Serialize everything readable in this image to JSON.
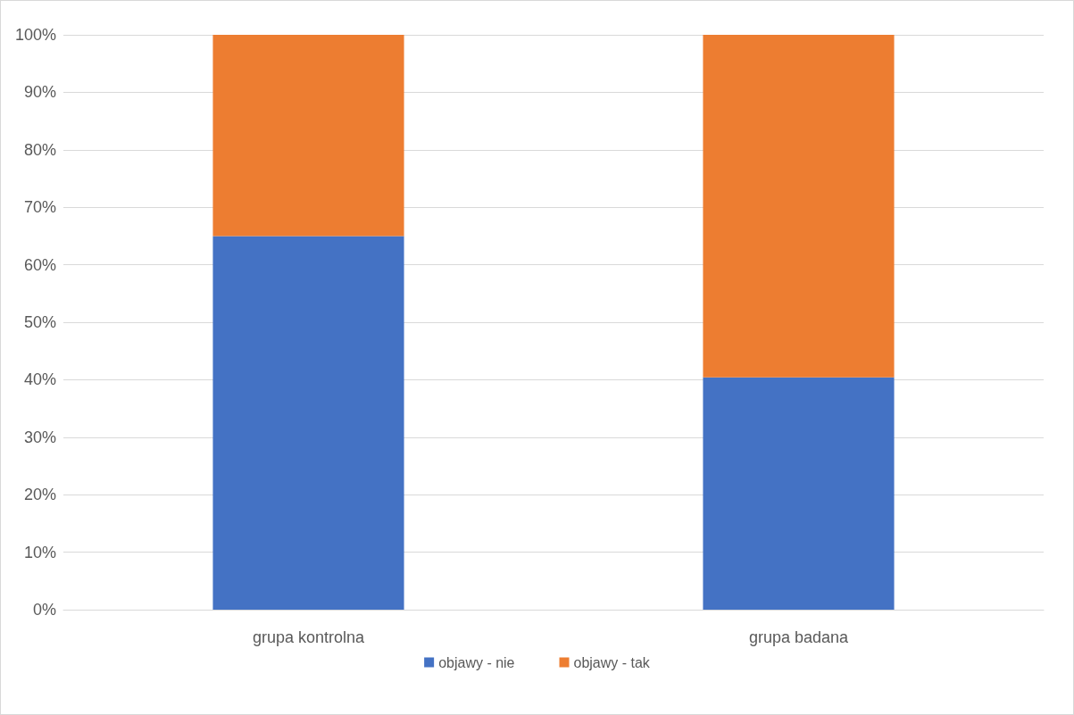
{
  "chart_data": {
    "type": "bar",
    "stacked": true,
    "categories": [
      "grupa kontrolna",
      "grupa badana"
    ],
    "series": [
      {
        "name": "objawy - nie",
        "color": "#4472c4",
        "values": [
          65,
          40.4
        ]
      },
      {
        "name": "objawy - tak",
        "color": "#ed7d31",
        "values": [
          35,
          59.6
        ]
      }
    ],
    "ylim": [
      0,
      100
    ],
    "yticks": [
      {
        "value": 0,
        "label": "0%"
      },
      {
        "value": 10,
        "label": "10%"
      },
      {
        "value": 20,
        "label": "20%"
      },
      {
        "value": 30,
        "label": "30%"
      },
      {
        "value": 40,
        "label": "40%"
      },
      {
        "value": 50,
        "label": "50%"
      },
      {
        "value": 60,
        "label": "60%"
      },
      {
        "value": 70,
        "label": "70%"
      },
      {
        "value": 80,
        "label": "80%"
      },
      {
        "value": 90,
        "label": "90%"
      },
      {
        "value": 100,
        "label": "100%"
      }
    ],
    "grid": "y",
    "legend": "bottom"
  }
}
